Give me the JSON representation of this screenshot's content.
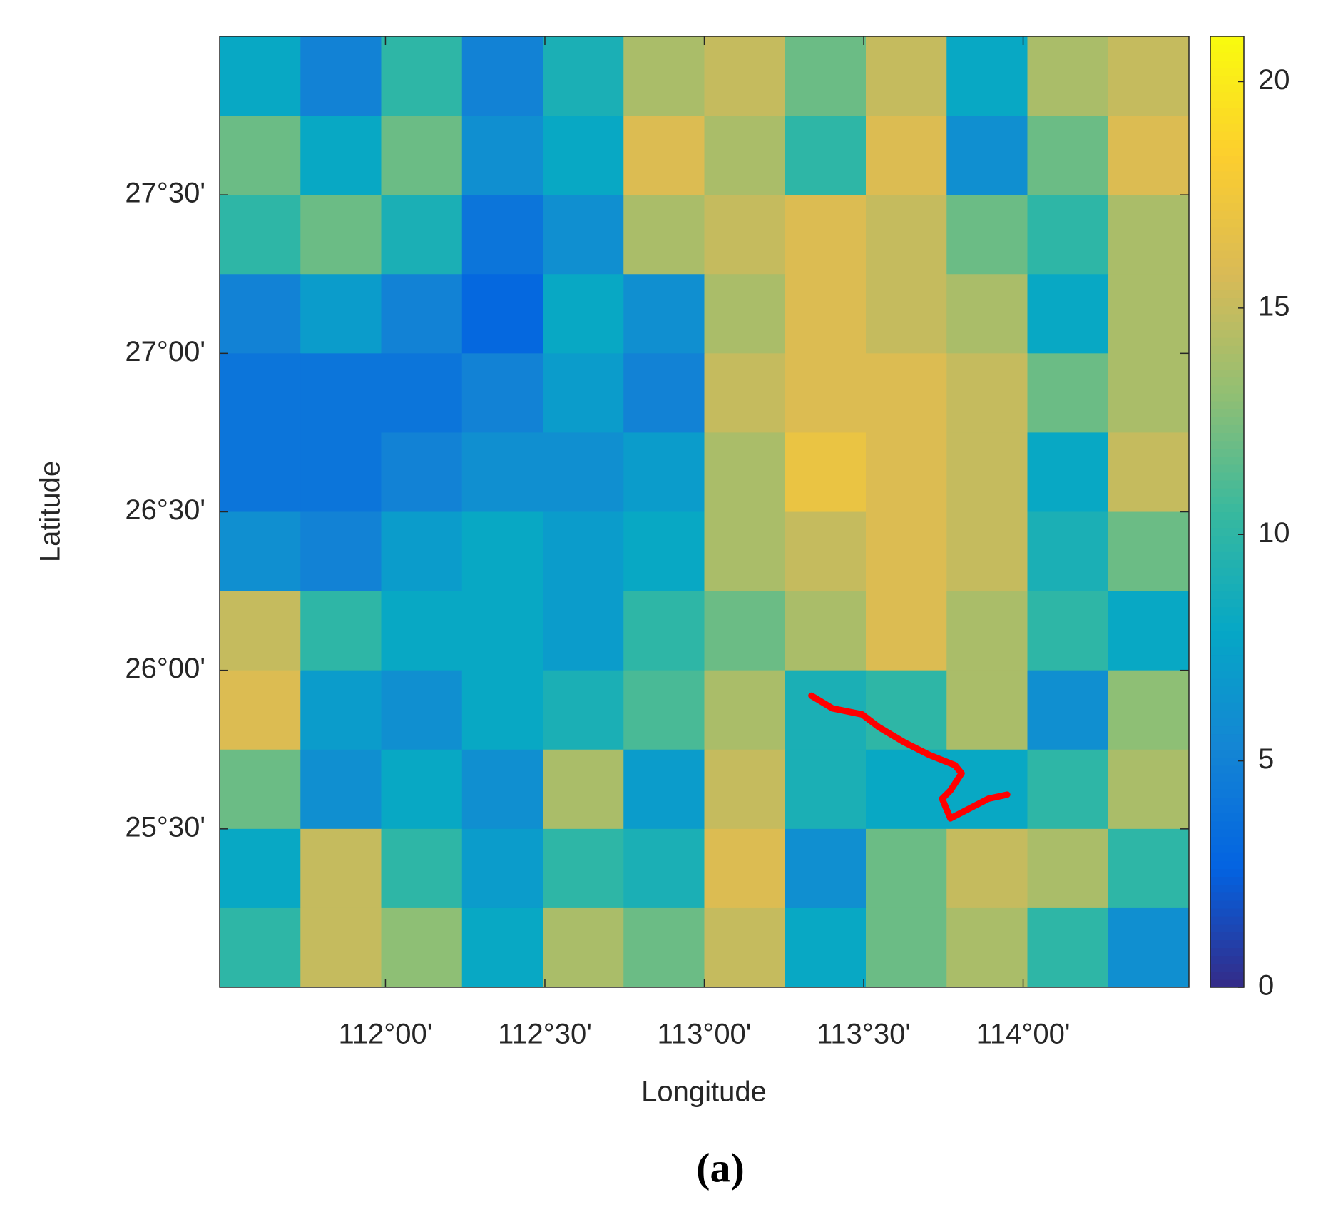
{
  "chart_data": {
    "type": "heatmap",
    "xlabel": "Longitude",
    "ylabel": "Latitude",
    "caption": "(a)",
    "xlim": [
      111.48,
      114.52
    ],
    "ylim": [
      25.0,
      28.0
    ],
    "xticks": [
      {
        "value": 112,
        "label": "112°00'"
      },
      {
        "value": 112.5,
        "label": "112°30'"
      },
      {
        "value": 113,
        "label": "113°00'"
      },
      {
        "value": 113.5,
        "label": "113°30'"
      },
      {
        "value": 114,
        "label": "114°00'"
      }
    ],
    "yticks": [
      {
        "value": 25.5,
        "label": "25°30'"
      },
      {
        "value": 26,
        "label": "26°00'"
      },
      {
        "value": 26.5,
        "label": "26°30'"
      },
      {
        "value": 27,
        "label": "27°00'"
      },
      {
        "value": 27.5,
        "label": "27°30'"
      }
    ],
    "clim": [
      0,
      21
    ],
    "cticks": [
      0,
      5,
      10,
      15,
      20
    ],
    "colormap": [
      "#352a87",
      "#0363e1",
      "#1485d4",
      "#06a7c6",
      "#38b99e",
      "#92bf73",
      "#d9ba56",
      "#fcce2e",
      "#f9fb0e"
    ],
    "values": [
      [
        8,
        5,
        10,
        5,
        9,
        14,
        15,
        12,
        15,
        8,
        14,
        15
      ],
      [
        12,
        8,
        12,
        6,
        8,
        16,
        14,
        10,
        16,
        6,
        12,
        16
      ],
      [
        10,
        12,
        9,
        4,
        6,
        14,
        15,
        16,
        15,
        12,
        10,
        14
      ],
      [
        5,
        7,
        5,
        3,
        8,
        6,
        14,
        16,
        15,
        14,
        8,
        14
      ],
      [
        4,
        4,
        4,
        5,
        7,
        5,
        15,
        16,
        16,
        15,
        12,
        14
      ],
      [
        4,
        4,
        5,
        6,
        6,
        7,
        14,
        17,
        16,
        15,
        8,
        15
      ],
      [
        6,
        5,
        7,
        8,
        7,
        8,
        14,
        15,
        16,
        15,
        9,
        12
      ],
      [
        15,
        10,
        8,
        8,
        7,
        10,
        12,
        14,
        16,
        14,
        10,
        8
      ],
      [
        16,
        7,
        6,
        8,
        9,
        11,
        14,
        9,
        10,
        14,
        6,
        13
      ],
      [
        12,
        6,
        8,
        6,
        14,
        7,
        15,
        9,
        8,
        8,
        10,
        14
      ],
      [
        8,
        15,
        10,
        7,
        10,
        9,
        16,
        6,
        12,
        15,
        14,
        10
      ],
      [
        10,
        15,
        13,
        8,
        14,
        12,
        15,
        8,
        12,
        14,
        10,
        6
      ]
    ],
    "series": [
      {
        "color": "#ff0000",
        "x": [
          113.336,
          113.402,
          113.495,
          113.547,
          113.627,
          113.706,
          113.786,
          113.807,
          113.772,
          113.746,
          113.772,
          113.839,
          113.891,
          113.95
        ],
        "y": [
          25.92,
          25.88,
          25.861,
          25.821,
          25.773,
          25.733,
          25.701,
          25.675,
          25.621,
          25.595,
          25.533,
          25.568,
          25.595,
          25.608
        ]
      }
    ]
  }
}
